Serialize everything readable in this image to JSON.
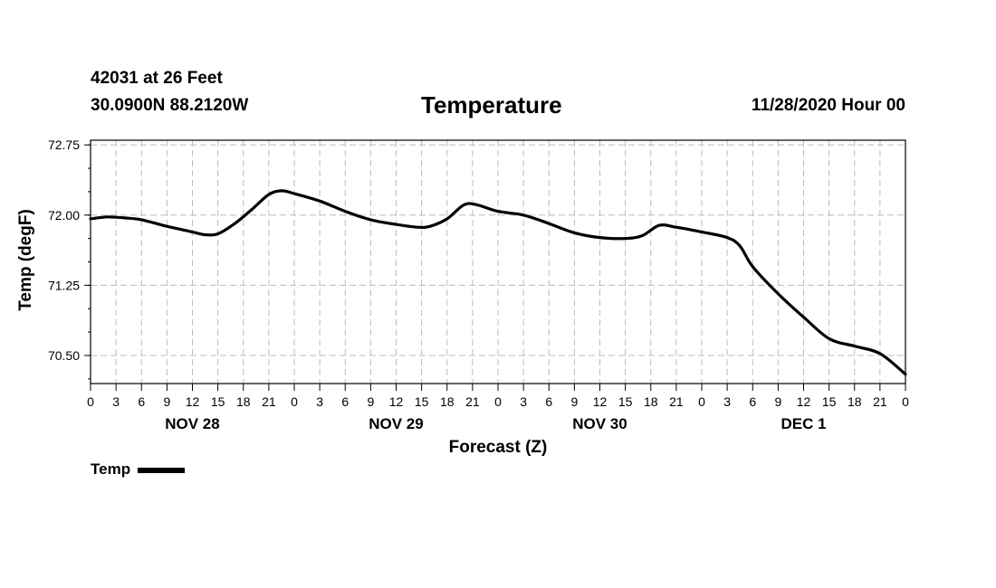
{
  "header": {
    "station": "42031 at 26 Feet",
    "coords": "30.0900N 88.2120W",
    "title": "Temperature",
    "runtime": "11/28/2020 Hour 00"
  },
  "chart_data": {
    "type": "line",
    "title": "Temperature",
    "xlabel": "Forecast (Z)",
    "ylabel": "Temp (degF)",
    "x_unit": "forecast hours from 11/28/2020 00Z",
    "xlim": [
      0,
      96
    ],
    "ylim": [
      70.2,
      72.8
    ],
    "yticks": [
      "72.75",
      "72.00",
      "71.25",
      "70.50"
    ],
    "ytick_values": [
      72.75,
      72.0,
      71.25,
      70.5
    ],
    "xticks": [
      "0",
      "3",
      "6",
      "9",
      "12",
      "15",
      "18",
      "21",
      "0",
      "3",
      "6",
      "9",
      "12",
      "15",
      "18",
      "21",
      "0",
      "3",
      "6",
      "9",
      "12",
      "15",
      "18",
      "21",
      "0",
      "3",
      "6",
      "9",
      "12",
      "15",
      "18",
      "21",
      "0"
    ],
    "date_labels": [
      {
        "label": "NOV 28",
        "hour": 12
      },
      {
        "label": "NOV 29",
        "hour": 36
      },
      {
        "label": "NOV 30",
        "hour": 60
      },
      {
        "label": "DEC 1",
        "hour": 84
      }
    ],
    "grid": true,
    "legend": "bottom-left",
    "series": [
      {
        "name": "Temp",
        "color": "#000000",
        "x": [
          0,
          2,
          4,
          6,
          9,
          12,
          13.5,
          15,
          17,
          19,
          21,
          22.5,
          24,
          27,
          30,
          33,
          36,
          38.5,
          40,
          42,
          44,
          45.5,
          48,
          51,
          54,
          57,
          60,
          63,
          65,
          67,
          69,
          72,
          75,
          76.5,
          78,
          81,
          84,
          87,
          90,
          93,
          96
        ],
        "values": [
          71.96,
          71.98,
          71.97,
          71.95,
          71.88,
          71.82,
          71.79,
          71.8,
          71.91,
          72.06,
          72.22,
          72.26,
          72.23,
          72.15,
          72.04,
          71.95,
          71.9,
          71.87,
          71.88,
          71.96,
          72.11,
          72.11,
          72.04,
          72.0,
          71.91,
          71.81,
          71.76,
          71.75,
          71.78,
          71.89,
          71.87,
          71.82,
          71.76,
          71.67,
          71.45,
          71.16,
          70.91,
          70.68,
          70.6,
          70.52,
          70.3
        ]
      }
    ]
  },
  "legend": {
    "label": "Temp"
  }
}
